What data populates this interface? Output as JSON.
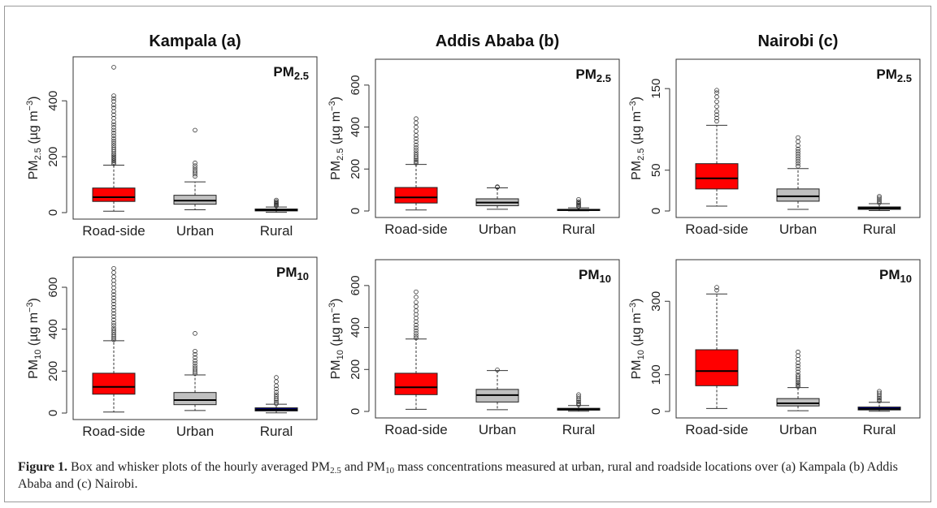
{
  "figure": {
    "caption_label": "Figure 1.",
    "caption_parts": {
      "p1": " Box and whisker plots of the hourly averaged PM",
      "s1": "2.5",
      "p2": " and PM",
      "s2": "10",
      "p3": " mass concentrations measured at urban, rural and roadside locations over (a) Kampala (b) Addis Ababa and (c) Nairobi."
    }
  },
  "chart_data": [
    {
      "type": "box",
      "title": "Kampala (a)",
      "pollutant": "PM",
      "pollutant_sub": "2.5",
      "ylabel": {
        "base": "PM",
        "sub": "2.5",
        "unit": " (µg m",
        "sup": "−3",
        "close": ")"
      },
      "categories": [
        "Road-side",
        "Urban",
        "Rural"
      ],
      "ylim": [
        0,
        540
      ],
      "yticks": [
        0,
        200,
        400
      ],
      "boxes": [
        {
          "category": "Road-side",
          "color": "#ff0000",
          "whisker_low": 5,
          "q1": 40,
          "median": 55,
          "q3": 88,
          "whisker_high": 170,
          "outliers": [
            175,
            180,
            185,
            190,
            195,
            200,
            205,
            210,
            218,
            225,
            232,
            240,
            248,
            256,
            265,
            275,
            285,
            295,
            305,
            315,
            325,
            338,
            350,
            362,
            375,
            385,
            398,
            408,
            418,
            520
          ]
        },
        {
          "category": "Urban",
          "color": "#c0c0c0",
          "whisker_low": 10,
          "q1": 30,
          "median": 43,
          "q3": 62,
          "whisker_high": 110,
          "outliers": [
            130,
            138,
            145,
            152,
            160,
            168,
            178,
            295
          ]
        },
        {
          "category": "Rural",
          "color": "#000000",
          "whisker_low": 1,
          "q1": 6,
          "median": 9,
          "q3": 13,
          "whisker_high": 20,
          "outliers": [
            24,
            27,
            30,
            33,
            36,
            40,
            45
          ]
        }
      ]
    },
    {
      "type": "box",
      "title": "Addis Ababa (b)",
      "pollutant": "PM",
      "pollutant_sub": "2.5",
      "ylabel": {
        "base": "PM",
        "sub": "2.5",
        "unit": " (µg m",
        "sup": "−3",
        "close": ")"
      },
      "categories": [
        "Road-side",
        "Urban",
        "Rural"
      ],
      "ylim": [
        0,
        700
      ],
      "yticks": [
        0,
        200,
        400,
        600
      ],
      "boxes": [
        {
          "category": "Road-side",
          "color": "#ff0000",
          "whisker_low": 5,
          "q1": 38,
          "median": 65,
          "q3": 112,
          "whisker_high": 222,
          "outliers": [
            228,
            235,
            242,
            250,
            258,
            268,
            278,
            290,
            302,
            315,
            330,
            345,
            360,
            380,
            400,
            420,
            440
          ]
        },
        {
          "category": "Urban",
          "color": "#c0c0c0",
          "whisker_low": 8,
          "q1": 25,
          "median": 40,
          "q3": 58,
          "whisker_high": 110,
          "outliers": [
            113,
            116
          ]
        },
        {
          "category": "Rural",
          "color": "#000000",
          "whisker_low": 1,
          "q1": 3,
          "median": 5,
          "q3": 8,
          "whisker_high": 15,
          "outliers": [
            20,
            25,
            30,
            35,
            40,
            45,
            55
          ]
        }
      ]
    },
    {
      "type": "box",
      "title": "Nairobi (c)",
      "pollutant": "PM",
      "pollutant_sub": "2.5",
      "ylabel": {
        "base": "PM",
        "sub": "2.5",
        "unit": " (µg m",
        "sup": "−3",
        "close": ")"
      },
      "categories": [
        "Road-side",
        "Urban",
        "Rural"
      ],
      "ylim": [
        0,
        180
      ],
      "yticks": [
        0,
        50,
        150
      ],
      "boxes": [
        {
          "category": "Road-side",
          "color": "#ff0000",
          "whisker_low": 6,
          "q1": 27,
          "median": 40,
          "q3": 58,
          "whisker_high": 105,
          "outliers": [
            110,
            114,
            118,
            122,
            128,
            134,
            140,
            145,
            148
          ]
        },
        {
          "category": "Urban",
          "color": "#c0c0c0",
          "whisker_low": 2,
          "q1": 12,
          "median": 18,
          "q3": 27,
          "whisker_high": 52,
          "outliers": [
            55,
            58,
            61,
            64,
            67,
            70,
            73,
            76,
            80,
            85,
            90
          ]
        },
        {
          "category": "Rural",
          "color": "#000000",
          "whisker_low": 0.5,
          "q1": 2,
          "median": 3.5,
          "q3": 5,
          "whisker_high": 9,
          "outliers": [
            10,
            12,
            14,
            16,
            18
          ]
        }
      ]
    },
    {
      "type": "box",
      "title": "",
      "pollutant": "PM",
      "pollutant_sub": "10",
      "ylabel": {
        "base": "PM",
        "sub": "10",
        "unit": " (µg m",
        "sup": "−3",
        "close": ")"
      },
      "categories": [
        "Road-side",
        "Urban",
        "Rural"
      ],
      "ylim": [
        0,
        720
      ],
      "yticks": [
        0,
        200,
        400,
        600
      ],
      "boxes": [
        {
          "category": "Road-side",
          "color": "#ff0000",
          "whisker_low": 5,
          "q1": 90,
          "median": 125,
          "q3": 190,
          "whisker_high": 345,
          "outliers": [
            350,
            358,
            366,
            375,
            385,
            395,
            405,
            418,
            430,
            445,
            460,
            475,
            490,
            505,
            520,
            535,
            550,
            565,
            580,
            598,
            615,
            632,
            650,
            670,
            690
          ]
        },
        {
          "category": "Urban",
          "color": "#c0c0c0",
          "whisker_low": 12,
          "q1": 40,
          "median": 62,
          "q3": 98,
          "whisker_high": 182,
          "outliers": [
            188,
            196,
            205,
            215,
            225,
            238,
            250,
            265,
            280,
            295,
            380
          ]
        },
        {
          "category": "Rural",
          "color": "#00008b",
          "whisker_low": 1,
          "q1": 10,
          "median": 16,
          "q3": 25,
          "whisker_high": 42,
          "outliers": [
            45,
            52,
            60,
            68,
            78,
            88,
            100,
            115,
            130,
            150,
            170
          ]
        }
      ]
    },
    {
      "type": "box",
      "title": "",
      "pollutant": "PM",
      "pollutant_sub": "10",
      "ylabel": {
        "base": "PM",
        "sub": "10",
        "unit": " (µg m",
        "sup": "−3",
        "close": ")"
      },
      "categories": [
        "Road-side",
        "Urban",
        "Rural"
      ],
      "ylim": [
        0,
        700
      ],
      "yticks": [
        0,
        200,
        400,
        600
      ],
      "boxes": [
        {
          "category": "Road-side",
          "color": "#ff0000",
          "whisker_low": 10,
          "q1": 80,
          "median": 115,
          "q3": 182,
          "whisker_high": 345,
          "outliers": [
            350,
            360,
            372,
            385,
            398,
            412,
            428,
            445,
            462,
            480,
            500,
            520,
            545,
            570
          ]
        },
        {
          "category": "Urban",
          "color": "#c0c0c0",
          "whisker_low": 8,
          "q1": 45,
          "median": 78,
          "q3": 105,
          "whisker_high": 195,
          "outliers": [
            198
          ]
        },
        {
          "category": "Rural",
          "color": "#00008b",
          "whisker_low": 1,
          "q1": 6,
          "median": 10,
          "q3": 15,
          "whisker_high": 28,
          "outliers": [
            32,
            38,
            45,
            52,
            60,
            70,
            80
          ]
        }
      ]
    },
    {
      "type": "box",
      "title": "",
      "pollutant": "PM",
      "pollutant_sub": "10",
      "ylabel": {
        "base": "PM",
        "sub": "10",
        "unit": " (µg m",
        "sup": "−3",
        "close": ")"
      },
      "categories": [
        "Road-side",
        "Urban",
        "Rural"
      ],
      "ylim": [
        0,
        400
      ],
      "yticks": [
        0,
        100,
        300
      ],
      "boxes": [
        {
          "category": "Road-side",
          "color": "#ff0000",
          "whisker_low": 8,
          "q1": 70,
          "median": 110,
          "q3": 168,
          "whisker_high": 320,
          "outliers": [
            330,
            338
          ]
        },
        {
          "category": "Urban",
          "color": "#c0c0c0",
          "whisker_low": 2,
          "q1": 15,
          "median": 22,
          "q3": 35,
          "whisker_high": 65,
          "outliers": [
            68,
            72,
            76,
            80,
            85,
            90,
            95,
            100,
            108,
            116,
            124,
            132,
            142,
            152,
            162
          ]
        },
        {
          "category": "Rural",
          "color": "#00008b",
          "whisker_low": 0.5,
          "q1": 4,
          "median": 7,
          "q3": 12,
          "whisker_high": 25,
          "outliers": [
            28,
            32,
            36,
            40,
            45,
            50,
            55
          ]
        }
      ]
    }
  ]
}
